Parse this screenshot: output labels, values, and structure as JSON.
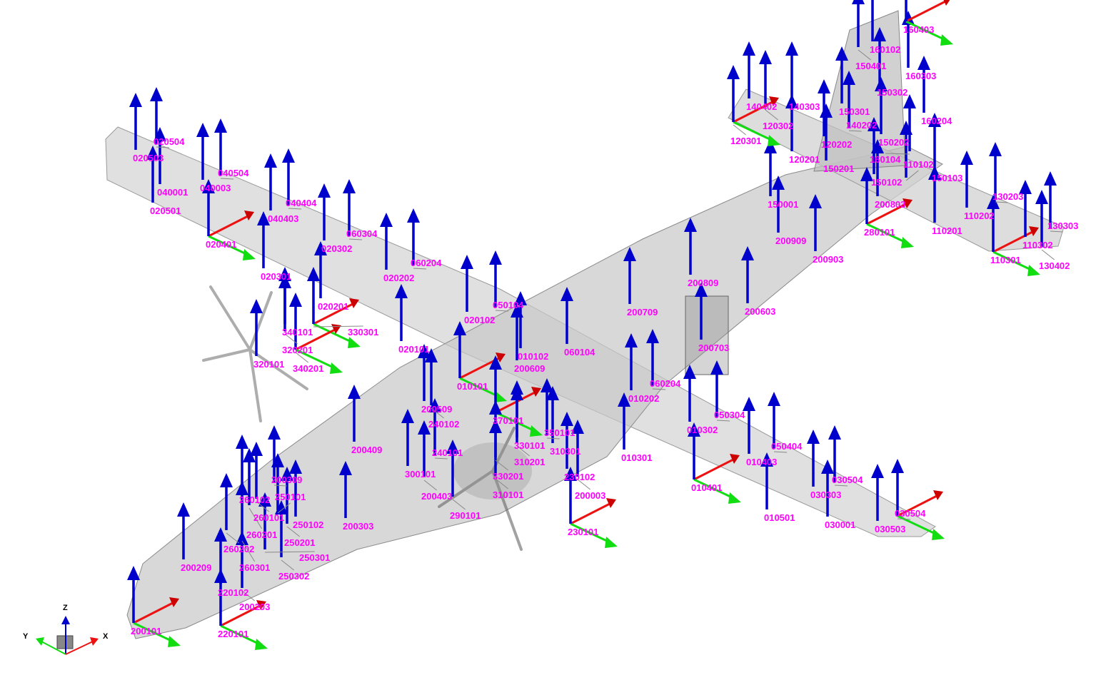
{
  "colors": {
    "z_axis": "#0000cc",
    "x_axis": "#ee1111",
    "y_axis": "#11dd11",
    "label": "#ff00ff",
    "mesh": "#9a9a9a"
  },
  "orientation_triad": {
    "x_label": "X",
    "y_label": "Y",
    "z_label": "Z"
  },
  "sensors": [
    {
      "id": "020503"
    },
    {
      "id": "020504"
    },
    {
      "id": "040001"
    },
    {
      "id": "040003"
    },
    {
      "id": "040504"
    },
    {
      "id": "020501"
    },
    {
      "id": "020401"
    },
    {
      "id": "040403"
    },
    {
      "id": "040404"
    },
    {
      "id": "020302"
    },
    {
      "id": "060304"
    },
    {
      "id": "020301"
    },
    {
      "id": "020202"
    },
    {
      "id": "060204"
    },
    {
      "id": "020201"
    },
    {
      "id": "340101"
    },
    {
      "id": "320201"
    },
    {
      "id": "330301"
    },
    {
      "id": "320101"
    },
    {
      "id": "340201"
    },
    {
      "id": "020101"
    },
    {
      "id": "020102"
    },
    {
      "id": "050104"
    },
    {
      "id": "010102"
    },
    {
      "id": "060104"
    },
    {
      "id": "200609"
    },
    {
      "id": "010101"
    },
    {
      "id": "200509"
    },
    {
      "id": "240102"
    },
    {
      "id": "370101"
    },
    {
      "id": "200409"
    },
    {
      "id": "300101"
    },
    {
      "id": "240101"
    },
    {
      "id": "200403"
    },
    {
      "id": "330101"
    },
    {
      "id": "310201"
    },
    {
      "id": "310301"
    },
    {
      "id": "330201"
    },
    {
      "id": "350101"
    },
    {
      "id": "310101"
    },
    {
      "id": "290101"
    },
    {
      "id": "230102"
    },
    {
      "id": "200003"
    },
    {
      "id": "230101"
    },
    {
      "id": "200303"
    },
    {
      "id": "010202"
    },
    {
      "id": "060204"
    },
    {
      "id": "010301"
    },
    {
      "id": "010302"
    },
    {
      "id": "050304"
    },
    {
      "id": "010401"
    },
    {
      "id": "010403"
    },
    {
      "id": "050404"
    },
    {
      "id": "010501"
    },
    {
      "id": "030303"
    },
    {
      "id": "030504"
    },
    {
      "id": "030001"
    },
    {
      "id": "030503"
    },
    {
      "id": "030504"
    },
    {
      "id": "200709"
    },
    {
      "id": "200809"
    },
    {
      "id": "200703"
    },
    {
      "id": "200603"
    },
    {
      "id": "200909"
    },
    {
      "id": "200903"
    },
    {
      "id": "280101"
    },
    {
      "id": "150001"
    },
    {
      "id": "150201"
    },
    {
      "id": "120201"
    },
    {
      "id": "120202"
    },
    {
      "id": "140202"
    },
    {
      "id": "150202"
    },
    {
      "id": "150102"
    },
    {
      "id": "200803"
    },
    {
      "id": "110102"
    },
    {
      "id": "150103"
    },
    {
      "id": "160104"
    },
    {
      "id": "160204"
    },
    {
      "id": "150301"
    },
    {
      "id": "150302"
    },
    {
      "id": "160303"
    },
    {
      "id": "160102"
    },
    {
      "id": "150401"
    },
    {
      "id": "160403"
    },
    {
      "id": "140402"
    },
    {
      "id": "140303"
    },
    {
      "id": "120302"
    },
    {
      "id": "120301"
    },
    {
      "id": "110202"
    },
    {
      "id": "130203"
    },
    {
      "id": "110201"
    },
    {
      "id": "110301"
    },
    {
      "id": "110302"
    },
    {
      "id": "130303"
    },
    {
      "id": "130402"
    },
    {
      "id": "260102"
    },
    {
      "id": "200309"
    },
    {
      "id": "260101"
    },
    {
      "id": "260201"
    },
    {
      "id": "250101"
    },
    {
      "id": "250102"
    },
    {
      "id": "250201"
    },
    {
      "id": "260202"
    },
    {
      "id": "260301"
    },
    {
      "id": "250301"
    },
    {
      "id": "250302"
    },
    {
      "id": "200209"
    },
    {
      "id": "220102"
    },
    {
      "id": "200203"
    },
    {
      "id": "200101"
    },
    {
      "id": "220101"
    }
  ]
}
